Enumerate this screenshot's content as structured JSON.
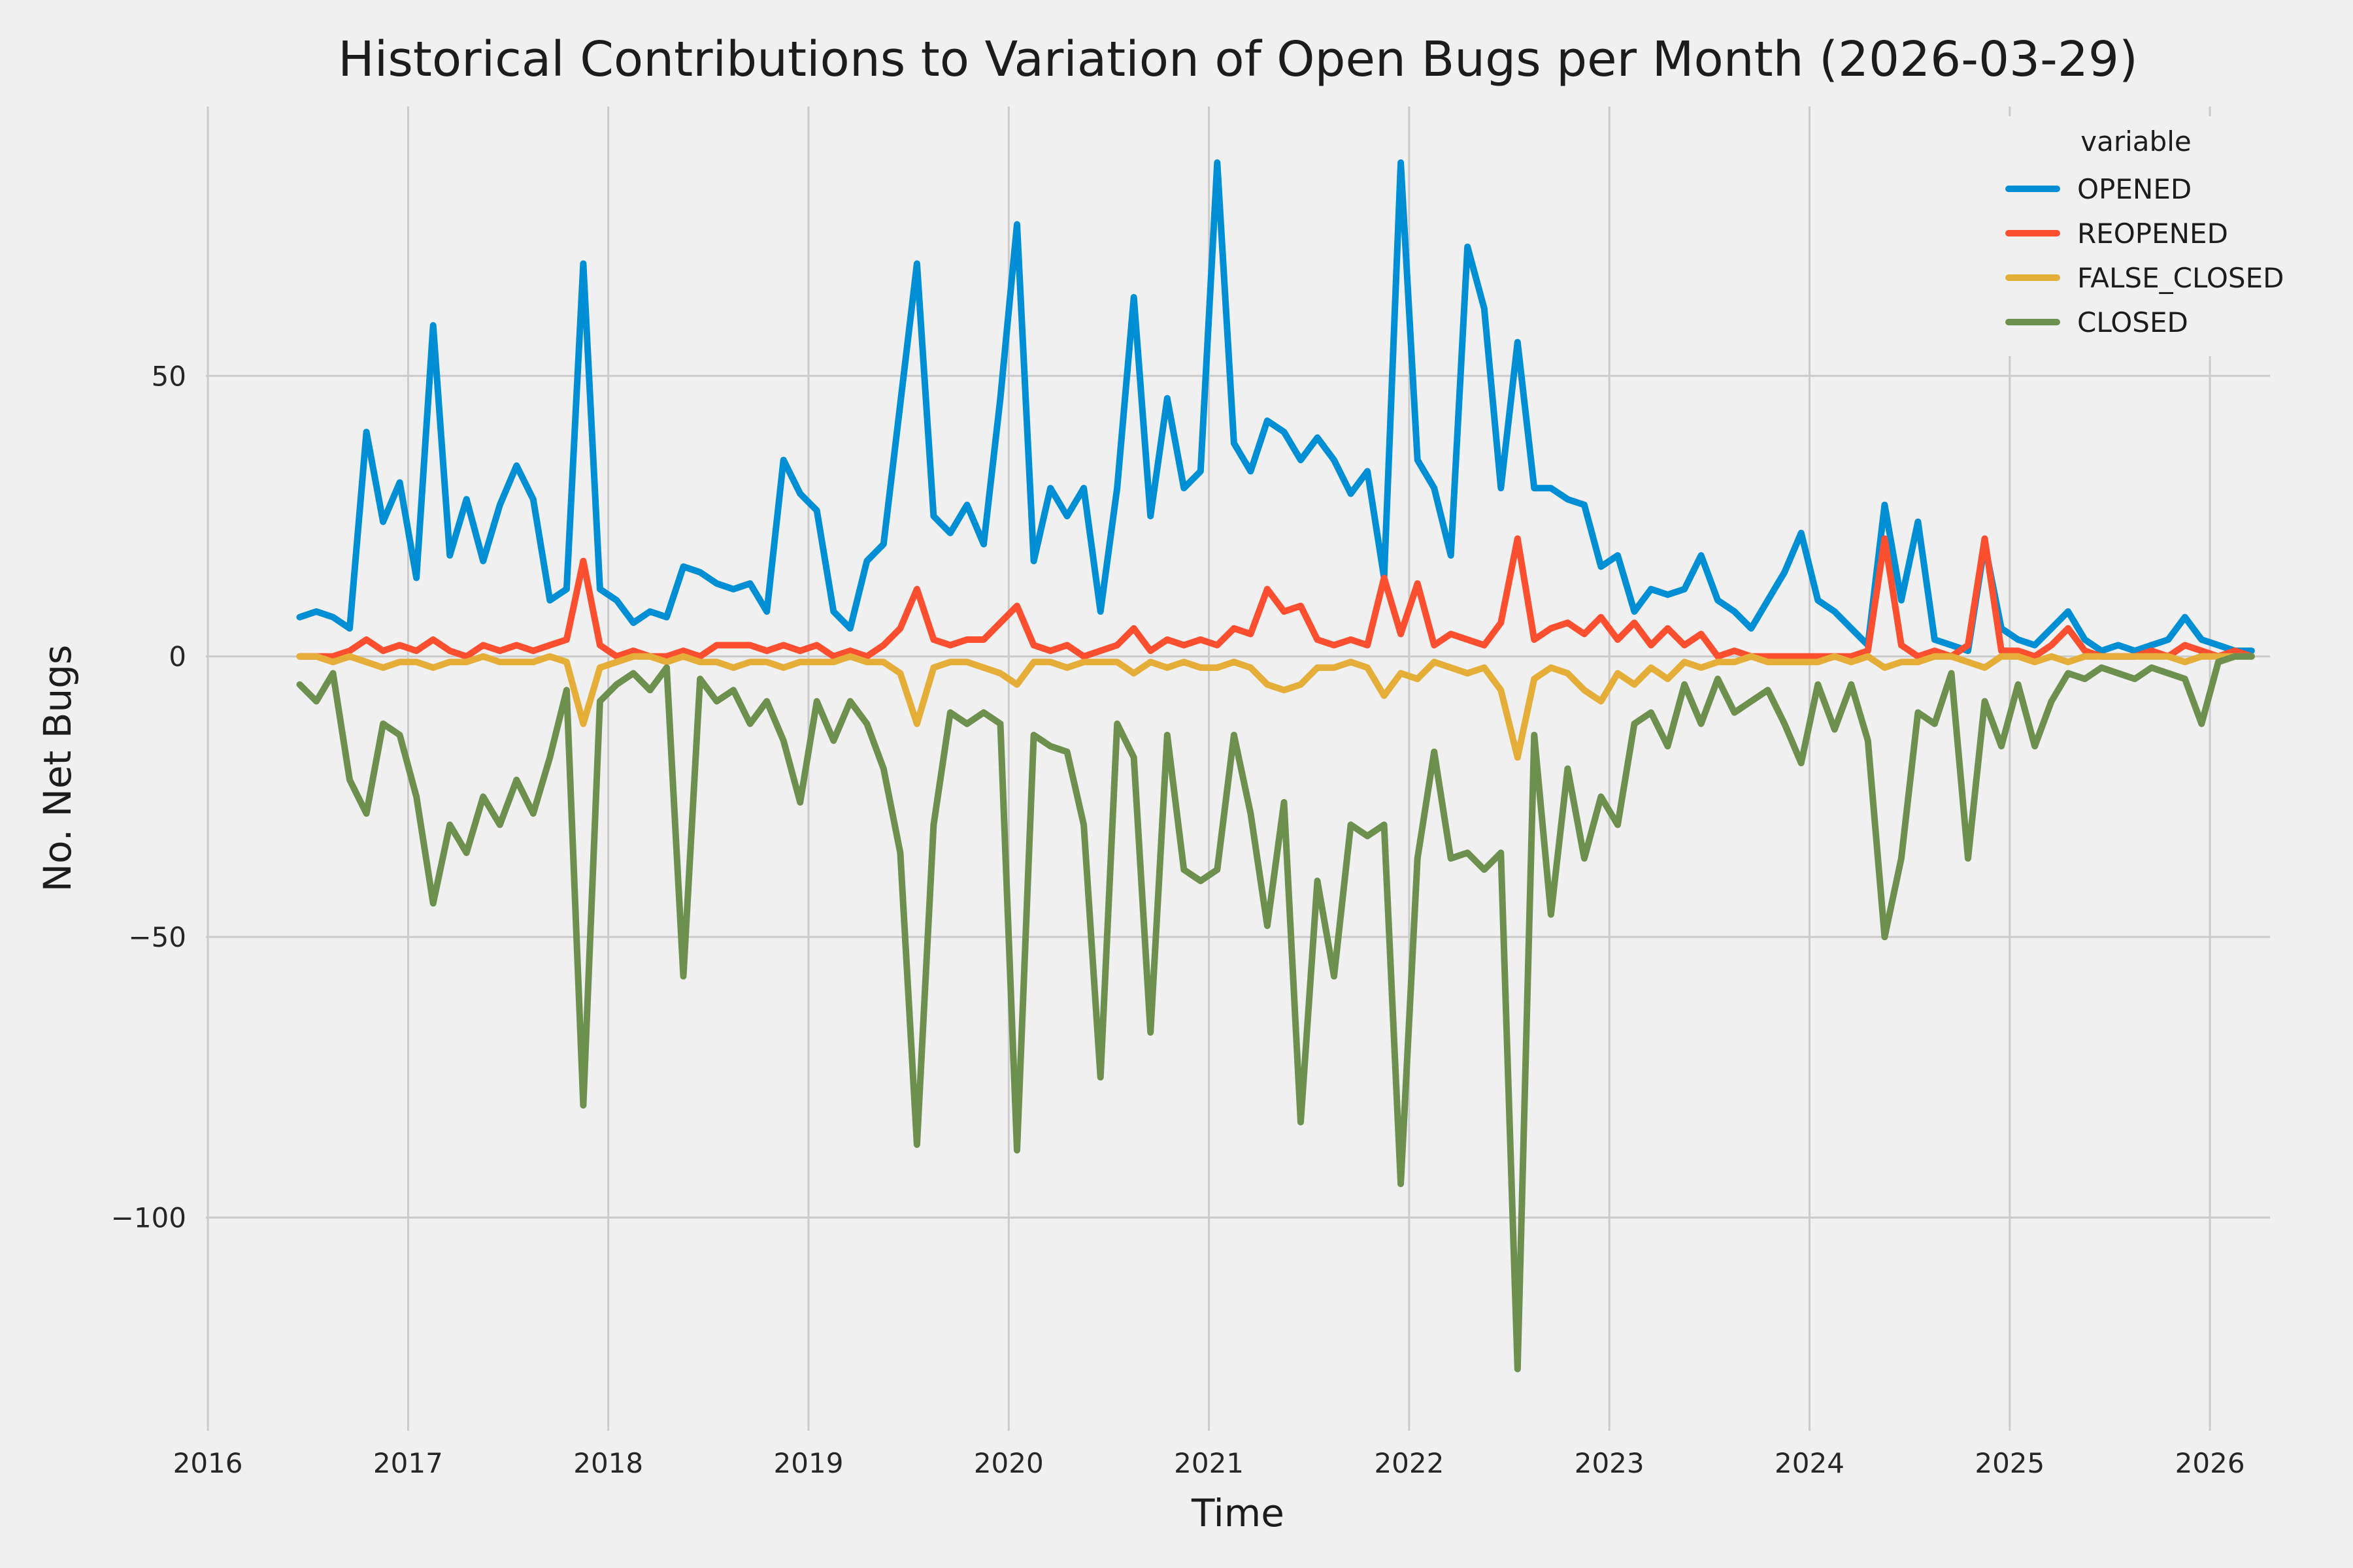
{
  "chart_data": {
    "type": "line",
    "title": "Historical Contributions to Variation of Open Bugs per Month (2026-03-29)",
    "xlabel": "Time",
    "ylabel": "No. Net Bugs",
    "legend_title": "variable",
    "legend_position": "upper right",
    "grid": true,
    "background_color": "#f0f0f0",
    "grid_color": "#cbcbcb",
    "text_color": "#262626",
    "xlim": [
      2015.99,
      2026.3
    ],
    "ylim": [
      -138,
      98
    ],
    "x_ticks": [
      2016,
      2017,
      2018,
      2019,
      2020,
      2021,
      2022,
      2023,
      2024,
      2025,
      2026
    ],
    "y_ticks": [
      {
        "value": 50,
        "label": "50"
      },
      {
        "value": 0,
        "label": "0"
      },
      {
        "value": -50,
        "label": "−50"
      },
      {
        "value": -100,
        "label": "−100"
      }
    ],
    "x_months": [
      "2016-06",
      "2016-07",
      "2016-08",
      "2016-09",
      "2016-10",
      "2016-11",
      "2016-12",
      "2017-01",
      "2017-02",
      "2017-03",
      "2017-04",
      "2017-05",
      "2017-06",
      "2017-07",
      "2017-08",
      "2017-09",
      "2017-10",
      "2017-11",
      "2017-12",
      "2018-01",
      "2018-02",
      "2018-03",
      "2018-04",
      "2018-05",
      "2018-06",
      "2018-07",
      "2018-08",
      "2018-09",
      "2018-10",
      "2018-11",
      "2018-12",
      "2019-01",
      "2019-02",
      "2019-03",
      "2019-04",
      "2019-05",
      "2019-06",
      "2019-07",
      "2019-08",
      "2019-09",
      "2019-10",
      "2019-11",
      "2019-12",
      "2020-01",
      "2020-02",
      "2020-03",
      "2020-04",
      "2020-05",
      "2020-06",
      "2020-07",
      "2020-08",
      "2020-09",
      "2020-10",
      "2020-11",
      "2020-12",
      "2021-01",
      "2021-02",
      "2021-03",
      "2021-04",
      "2021-05",
      "2021-06",
      "2021-07",
      "2021-08",
      "2021-09",
      "2021-10",
      "2021-11",
      "2021-12",
      "2022-01",
      "2022-02",
      "2022-03",
      "2022-04",
      "2022-05",
      "2022-06",
      "2022-07",
      "2022-08",
      "2022-09",
      "2022-10",
      "2022-11",
      "2022-12",
      "2023-01",
      "2023-02",
      "2023-03",
      "2023-04",
      "2023-05",
      "2023-06",
      "2023-07",
      "2023-08",
      "2023-09",
      "2023-10",
      "2023-11",
      "2023-12",
      "2024-01",
      "2024-02",
      "2024-03",
      "2024-04",
      "2024-05",
      "2024-06",
      "2024-07",
      "2024-08",
      "2024-09",
      "2024-10",
      "2024-11",
      "2024-12",
      "2025-01",
      "2025-02",
      "2025-03",
      "2025-04",
      "2025-05",
      "2025-06",
      "2025-07",
      "2025-08",
      "2025-09",
      "2025-10",
      "2025-11",
      "2025-12",
      "2026-01",
      "2026-02",
      "2026-03"
    ],
    "series": [
      {
        "name": "OPENED",
        "color": "#008fd5",
        "values": [
          7,
          8,
          7,
          5,
          40,
          24,
          31,
          14,
          59,
          18,
          28,
          17,
          27,
          34,
          28,
          10,
          12,
          70,
          12,
          10,
          6,
          8,
          7,
          16,
          15,
          13,
          12,
          13,
          8,
          35,
          29,
          26,
          8,
          5,
          17,
          20,
          45,
          70,
          25,
          22,
          27,
          20,
          46,
          77,
          17,
          30,
          25,
          30,
          8,
          30,
          64,
          25,
          46,
          30,
          33,
          88,
          38,
          33,
          42,
          40,
          35,
          39,
          35,
          29,
          33,
          14,
          88,
          35,
          30,
          18,
          73,
          62,
          30,
          56,
          30,
          30,
          28,
          27,
          16,
          18,
          8,
          12,
          11,
          12,
          18,
          10,
          8,
          5,
          10,
          15,
          22,
          10,
          8,
          5,
          2,
          27,
          10,
          24,
          3,
          2,
          1,
          20,
          5,
          3,
          2,
          5,
          8,
          3,
          1,
          2,
          1,
          2,
          3,
          7,
          3,
          2,
          1,
          1
        ]
      },
      {
        "name": "REOPENED",
        "color": "#fc4f30",
        "values": [
          0,
          0,
          0,
          1,
          3,
          1,
          2,
          1,
          3,
          1,
          0,
          2,
          1,
          2,
          1,
          2,
          3,
          17,
          2,
          0,
          1,
          0,
          0,
          1,
          0,
          2,
          2,
          2,
          1,
          2,
          1,
          2,
          0,
          1,
          0,
          2,
          5,
          12,
          3,
          2,
          3,
          3,
          6,
          9,
          2,
          1,
          2,
          0,
          1,
          2,
          5,
          1,
          3,
          2,
          3,
          2,
          5,
          4,
          12,
          8,
          9,
          3,
          2,
          3,
          2,
          14,
          4,
          13,
          2,
          4,
          3,
          2,
          6,
          21,
          3,
          5,
          6,
          4,
          7,
          3,
          6,
          2,
          5,
          2,
          4,
          0,
          1,
          0,
          0,
          0,
          0,
          0,
          0,
          0,
          1,
          21,
          2,
          0,
          1,
          0,
          2,
          21,
          1,
          1,
          0,
          2,
          5,
          1,
          0,
          0,
          0,
          1,
          0,
          2,
          1,
          0,
          1,
          0
        ]
      },
      {
        "name": "FALSE_CLOSED",
        "color": "#e5ae38",
        "values": [
          0,
          0,
          -1,
          0,
          -1,
          -2,
          -1,
          -1,
          -2,
          -1,
          -1,
          0,
          -1,
          -1,
          -1,
          0,
          -1,
          -12,
          -2,
          -1,
          0,
          0,
          -1,
          0,
          -1,
          -1,
          -2,
          -1,
          -1,
          -2,
          -1,
          -1,
          -1,
          0,
          -1,
          -1,
          -3,
          -12,
          -2,
          -1,
          -1,
          -2,
          -3,
          -5,
          -1,
          -1,
          -2,
          -1,
          -1,
          -1,
          -3,
          -1,
          -2,
          -1,
          -2,
          -2,
          -1,
          -2,
          -5,
          -6,
          -5,
          -2,
          -2,
          -1,
          -2,
          -7,
          -3,
          -4,
          -1,
          -2,
          -3,
          -2,
          -6,
          -18,
          -4,
          -2,
          -3,
          -6,
          -8,
          -3,
          -5,
          -2,
          -4,
          -1,
          -2,
          -1,
          -1,
          0,
          -1,
          -1,
          -1,
          -1,
          0,
          -1,
          0,
          -2,
          -1,
          -1,
          0,
          0,
          -1,
          -2,
          0,
          0,
          -1,
          0,
          -1,
          0,
          0,
          0,
          0,
          0,
          0,
          -1,
          0,
          0,
          0,
          0
        ]
      },
      {
        "name": "CLOSED",
        "color": "#6d904f",
        "values": [
          -5,
          -8,
          -3,
          -22,
          -28,
          -12,
          -14,
          -25,
          -44,
          -30,
          -35,
          -25,
          -30,
          -22,
          -28,
          -18,
          -6,
          -80,
          -8,
          -5,
          -3,
          -6,
          -2,
          -57,
          -4,
          -8,
          -6,
          -12,
          -8,
          -15,
          -26,
          -8,
          -15,
          -8,
          -12,
          -20,
          -35,
          -87,
          -30,
          -10,
          -12,
          -10,
          -12,
          -88,
          -14,
          -16,
          -17,
          -30,
          -75,
          -12,
          -18,
          -67,
          -14,
          -38,
          -40,
          -38,
          -14,
          -28,
          -48,
          -26,
          -83,
          -40,
          -57,
          -30,
          -32,
          -30,
          -94,
          -36,
          -17,
          -36,
          -35,
          -38,
          -35,
          -127,
          -14,
          -46,
          -20,
          -36,
          -25,
          -30,
          -12,
          -10,
          -16,
          -5,
          -12,
          -4,
          -10,
          -8,
          -6,
          -12,
          -19,
          -5,
          -13,
          -5,
          -15,
          -50,
          -36,
          -10,
          -12,
          -3,
          -36,
          -8,
          -16,
          -5,
          -16,
          -8,
          -3,
          -4,
          -2,
          -3,
          -4,
          -2,
          -3,
          -4,
          -12,
          -1,
          0,
          0
        ]
      }
    ]
  }
}
